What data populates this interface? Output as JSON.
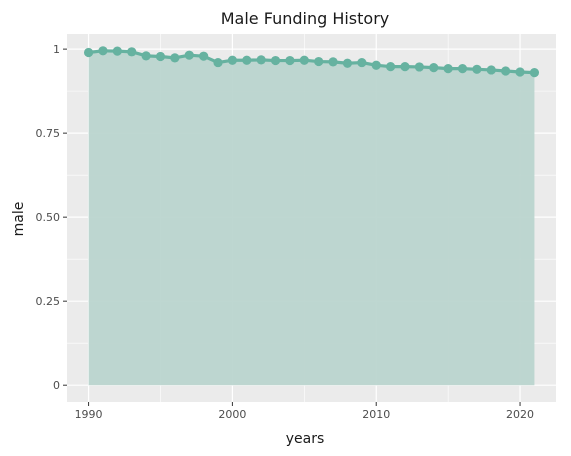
{
  "chart_data": {
    "type": "area",
    "title": "Male Funding History",
    "xlabel": "years",
    "ylabel": "male",
    "xlim": [
      1988.5,
      2022.5
    ],
    "ylim": [
      -0.05,
      1.045
    ],
    "x_ticks": [
      1990,
      2000,
      2010,
      2020
    ],
    "x_tick_labels": [
      "1990",
      "2000",
      "2010",
      "2020"
    ],
    "y_ticks": [
      0,
      0.25,
      0.5,
      0.75,
      1
    ],
    "y_tick_labels": [
      "0",
      "0.25",
      "0.50",
      "0.75",
      "1"
    ],
    "grid": true,
    "panel_background": "#ebebeb",
    "grid_color": "#ffffff",
    "series_color": "#66b2a0",
    "area_color": "#b8d4cd",
    "series": [
      {
        "x": [
          1990,
          1991,
          1992,
          1993,
          1994,
          1995,
          1996,
          1997,
          1998,
          1999,
          2000,
          2001,
          2002,
          2003,
          2004,
          2005,
          2006,
          2007,
          2008,
          2009,
          2010,
          2011,
          2012,
          2013,
          2014,
          2015,
          2016,
          2017,
          2018,
          2019,
          2020,
          2021
        ],
        "values": [
          0.99,
          0.995,
          0.994,
          0.992,
          0.98,
          0.978,
          0.974,
          0.982,
          0.979,
          0.96,
          0.967,
          0.967,
          0.968,
          0.966,
          0.966,
          0.967,
          0.963,
          0.962,
          0.958,
          0.96,
          0.952,
          0.948,
          0.948,
          0.947,
          0.945,
          0.942,
          0.942,
          0.94,
          0.938,
          0.935,
          0.932,
          0.93
        ]
      }
    ]
  }
}
